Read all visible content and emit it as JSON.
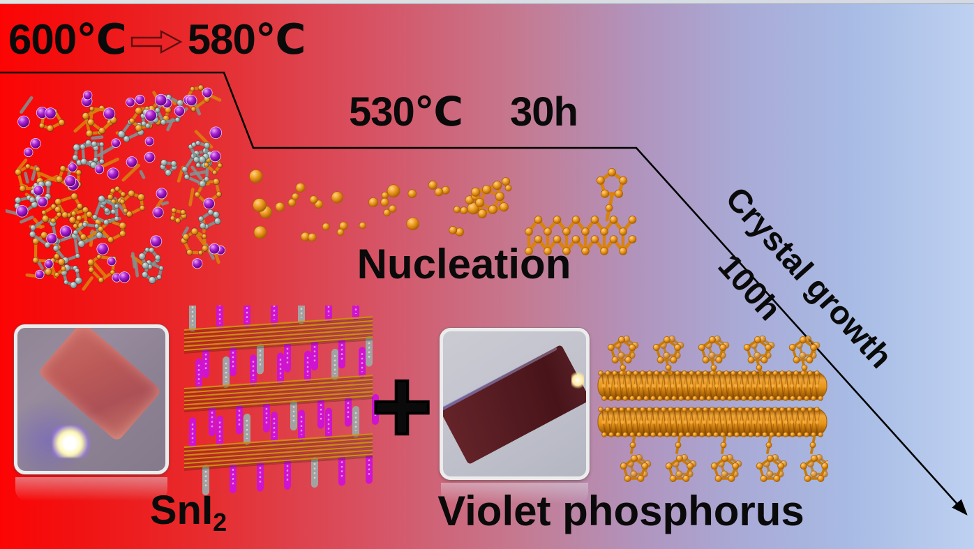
{
  "process": {
    "step1": {
      "temp_from": "600℃",
      "temp_to": "580℃"
    },
    "step2": {
      "temp": "530℃",
      "duration": "30h",
      "label": "Nucleation"
    },
    "step3": {
      "label": "Crystal growth",
      "duration": "100h"
    }
  },
  "reactants": {
    "sni2": {
      "formula_main": "SnI",
      "formula_sub": "2"
    },
    "plus_sign": "+",
    "violet_phosphorus": {
      "label": "Violet phosphorus"
    }
  },
  "icons": {
    "temp_step_arrow": "hollow-right-arrow-icon",
    "process_path": "temperature-profile-arrow-line"
  },
  "images": {
    "melt_structure": "molecular-cluster-image",
    "nucleation_atoms": "scattered-atoms-image",
    "sni2_structure": "layered-crystal-structure-image",
    "sni2_crystal_photo": "red-crystal-micrograph",
    "violet_phosphorus_photo": "dark-red-crystal-micrograph",
    "violet_phosphorus_structure": "tubular-structure-image"
  },
  "colors": {
    "bg_left": "#fc0404",
    "bg_mid": "#c47b93",
    "bg_right": "#bed1f1",
    "text": "#0a0a0a",
    "line": "#000000",
    "atom_orange": "#e8921b",
    "bond_orange": "#d9820e",
    "atom_gray": "#8ba19e",
    "bond_gray": "#7f9494",
    "atom_purple": "#8c10b0",
    "rod_magenta": "#cf13cf",
    "rod_gray": "#a2a2a2",
    "arrow_outline": "#5e0f0f"
  }
}
